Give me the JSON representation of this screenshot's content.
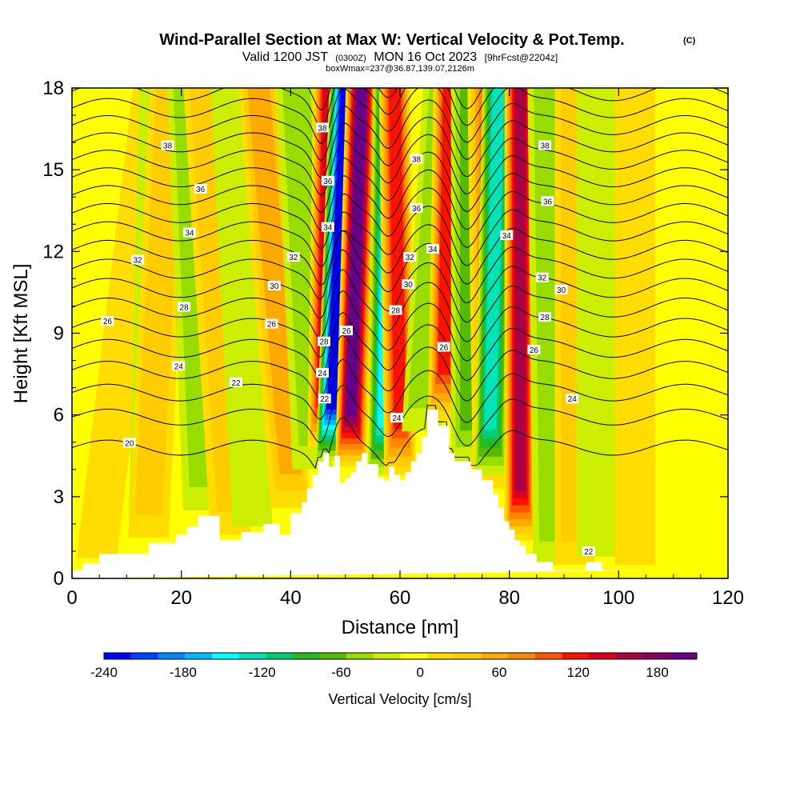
{
  "chart_data": {
    "type": "heatmap",
    "title": "Wind-Parallel Section at Max W: Vertical Velocity & Pot.Temp.",
    "copyright_mark": "(C)",
    "subtitle_parts": [
      "Valid 1200 JST",
      "(0300Z)",
      "MON 16 Oct 2023",
      "[9hrFcst@2204z]"
    ],
    "subtitle2": "boxWmax=237@36.87,139.07,2126m",
    "xlabel": "Distance [nm]",
    "ylabel": "Height [Kft MSL]",
    "xlim": [
      0,
      120
    ],
    "ylim": [
      0,
      18
    ],
    "x_ticks": [
      0,
      20,
      40,
      60,
      80,
      100,
      120
    ],
    "y_ticks": [
      0,
      3,
      6,
      9,
      12,
      15,
      18
    ],
    "colorbar": {
      "label": "Vertical Velocity [cm/s]",
      "ticks": [
        -240,
        -180,
        -120,
        -60,
        0,
        60,
        120,
        180
      ],
      "range": [
        -240,
        210
      ],
      "colors": [
        "#0000ff",
        "#0044ff",
        "#0088ff",
        "#00bbff",
        "#00ffff",
        "#00e4b8",
        "#00cc77",
        "#22bb22",
        "#55bb00",
        "#99dd00",
        "#ccee00",
        "#ffff00",
        "#ffdd00",
        "#ffcc00",
        "#ffaa00",
        "#ff8800",
        "#ff5500",
        "#ff1100",
        "#dd0022",
        "#aa0044",
        "#880066",
        "#660088"
      ]
    },
    "terrain": {
      "x": [
        0,
        2,
        2,
        5,
        5,
        14,
        14,
        19,
        19,
        21,
        21,
        23,
        23,
        27,
        27,
        31,
        31,
        35,
        35,
        38,
        38,
        40,
        40,
        42,
        42,
        43,
        43,
        44,
        44,
        45,
        45,
        46,
        46,
        47,
        47,
        48,
        48,
        49,
        49,
        50,
        50,
        51,
        51,
        52,
        52,
        53,
        53,
        54,
        54,
        56,
        56,
        57,
        57,
        58,
        58,
        59,
        59,
        60,
        60,
        61,
        61,
        62,
        62,
        63,
        63,
        64,
        64,
        65,
        65,
        67,
        67,
        69,
        69,
        70,
        70,
        73,
        73,
        75,
        75,
        77,
        77,
        78,
        78,
        79,
        79,
        80,
        80,
        81,
        81,
        82,
        82,
        83,
        83,
        85,
        85,
        88,
        88,
        90,
        90,
        92,
        92,
        94,
        94,
        97,
        97,
        107,
        107,
        110,
        110,
        120,
        120
      ],
      "height": [
        0.3,
        0.3,
        0.55,
        0.55,
        0.9,
        0.9,
        1.3,
        1.3,
        1.6,
        1.6,
        1.9,
        1.9,
        2.3,
        2.3,
        1.4,
        1.4,
        1.7,
        1.7,
        2.0,
        2.0,
        1.6,
        1.6,
        2.4,
        2.4,
        2.8,
        2.8,
        3.3,
        3.3,
        3.8,
        3.8,
        4.3,
        4.3,
        4.6,
        4.6,
        4.1,
        4.1,
        4.5,
        4.5,
        3.5,
        3.5,
        3.7,
        3.7,
        3.9,
        3.9,
        4.3,
        4.3,
        4.6,
        4.6,
        4.2,
        4.2,
        3.7,
        3.7,
        3.6,
        3.6,
        4.1,
        4.1,
        3.8,
        3.8,
        3.6,
        3.6,
        3.9,
        3.9,
        4.3,
        4.3,
        4.6,
        4.6,
        5.2,
        5.2,
        6.2,
        6.2,
        5.6,
        5.6,
        4.6,
        4.6,
        4.3,
        4.3,
        4.0,
        4.0,
        3.6,
        3.6,
        3.1,
        3.1,
        2.6,
        2.6,
        2.1,
        2.1,
        1.8,
        1.8,
        1.4,
        1.4,
        1.2,
        1.2,
        0.9,
        0.9,
        0.6,
        0.6,
        0.3,
        0.3,
        0.3,
        0.3,
        0.3,
        0.3,
        0.6,
        0.6,
        0.3,
        0.3,
        0.3
      ]
    },
    "velocity_bands": [
      {
        "x0": 4.5,
        "x1": 15,
        "w": 18
      },
      {
        "x0": 14,
        "x1": 16,
        "w": -25
      },
      {
        "x0": 14,
        "x1": 18,
        "w": 48
      },
      {
        "x0": 24,
        "x1": 21,
        "w": -42
      },
      {
        "x0": 29,
        "x1": 24,
        "w": 40
      },
      {
        "x0": 33,
        "x1": 29,
        "w": -32
      },
      {
        "x0": 40,
        "x1": 34,
        "w": 55
      },
      {
        "x0": 44,
        "x1": 41,
        "w": -50
      },
      {
        "x0": 46,
        "x1": 47,
        "w": 150
      },
      {
        "x0": 47.5,
        "x1": 50,
        "w": -230
      },
      {
        "x0": 51,
        "x1": 53,
        "w": 195
      },
      {
        "x0": 57,
        "x1": 58,
        "w": -150
      },
      {
        "x0": 60,
        "x1": 59,
        "w": 118
      },
      {
        "x0": 64,
        "x1": 68,
        "w": -40
      },
      {
        "x0": 68,
        "x1": 69,
        "w": 130
      },
      {
        "x0": 73,
        "x1": 73,
        "w": -65
      },
      {
        "x0": 77,
        "x1": 76,
        "w": 72
      },
      {
        "x0": 76.5,
        "x1": 78,
        "w": -130
      },
      {
        "x0": 82,
        "x1": 82,
        "w": 160
      },
      {
        "x0": 88,
        "x1": 87,
        "w": -50
      },
      {
        "x0": 92,
        "x1": 92,
        "w": 40
      },
      {
        "x0": 96,
        "x1": 96,
        "w": -20
      },
      {
        "x0": 103,
        "x1": 103,
        "w": 28
      },
      {
        "x0": 110,
        "x1": 112,
        "w": -22
      }
    ],
    "theta_levels": [
      20,
      21,
      22,
      23,
      24,
      25,
      26,
      27,
      28,
      29,
      30,
      31,
      32,
      33,
      34,
      35,
      36,
      37,
      38,
      39
    ],
    "theta_labels": [
      {
        "x": 6.5,
        "y": 9.45,
        "text": "26"
      },
      {
        "x": 10.5,
        "y": 4.98,
        "text": "20"
      },
      {
        "x": 12,
        "y": 11.7,
        "text": "32"
      },
      {
        "x": 17.5,
        "y": 15.9,
        "text": "38"
      },
      {
        "x": 19.5,
        "y": 7.8,
        "text": "24"
      },
      {
        "x": 20.5,
        "y": 9.97,
        "text": "28"
      },
      {
        "x": 21.5,
        "y": 12.7,
        "text": "34"
      },
      {
        "x": 23.5,
        "y": 14.3,
        "text": "36"
      },
      {
        "x": 30,
        "y": 7.2,
        "text": "22"
      },
      {
        "x": 36.5,
        "y": 9.35,
        "text": "26"
      },
      {
        "x": 37,
        "y": 10.75,
        "text": "30"
      },
      {
        "x": 40.5,
        "y": 11.8,
        "text": "32"
      },
      {
        "x": 45.8,
        "y": 16.55,
        "text": "38"
      },
      {
        "x": 46.8,
        "y": 14.6,
        "text": "36"
      },
      {
        "x": 46.8,
        "y": 12.9,
        "text": "34"
      },
      {
        "x": 46.1,
        "y": 8.7,
        "text": "28"
      },
      {
        "x": 45.8,
        "y": 7.55,
        "text": "24"
      },
      {
        "x": 46.2,
        "y": 6.6,
        "text": "22"
      },
      {
        "x": 50.2,
        "y": 9.1,
        "text": "26"
      },
      {
        "x": 59.4,
        "y": 5.9,
        "text": "24"
      },
      {
        "x": 59.2,
        "y": 9.85,
        "text": "28"
      },
      {
        "x": 61.5,
        "y": 10.8,
        "text": "30"
      },
      {
        "x": 61.8,
        "y": 11.8,
        "text": "32"
      },
      {
        "x": 63,
        "y": 15.4,
        "text": "38"
      },
      {
        "x": 63,
        "y": 13.6,
        "text": "36"
      },
      {
        "x": 66,
        "y": 12.1,
        "text": "34"
      },
      {
        "x": 68,
        "y": 8.5,
        "text": "26"
      },
      {
        "x": 79.5,
        "y": 12.6,
        "text": "34"
      },
      {
        "x": 84.5,
        "y": 8.4,
        "text": "26"
      },
      {
        "x": 86,
        "y": 11.05,
        "text": "32"
      },
      {
        "x": 86.5,
        "y": 15.9,
        "text": "38"
      },
      {
        "x": 86.5,
        "y": 9.6,
        "text": "28"
      },
      {
        "x": 87,
        "y": 13.85,
        "text": "36"
      },
      {
        "x": 89.5,
        "y": 10.6,
        "text": "30"
      },
      {
        "x": 91.5,
        "y": 6.6,
        "text": "24"
      },
      {
        "x": 94.5,
        "y": 1.0,
        "text": "22"
      }
    ]
  }
}
